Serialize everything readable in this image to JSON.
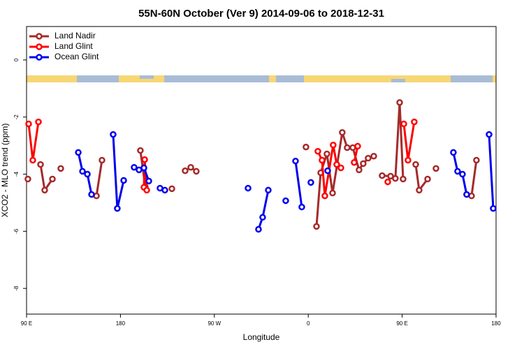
{
  "chart_data": {
    "type": "line",
    "title": "55N-60N October (Ver 9)   2014-09-06 to 2018-12-31",
    "x_label": "Longitude",
    "y_label": "XCO2 - MLO trend (ppm)",
    "xlim": [
      90,
      540
    ],
    "ylim": [
      -8.9,
      1.17
    ],
    "xticks": [
      {
        "value": 90,
        "label": "90 E"
      },
      180,
      {
        "value": 270,
        "label": "90 W"
      },
      {
        "value": 360,
        "label": "0"
      },
      {
        "value": 450,
        "label": "90 E"
      },
      {
        "value": 540,
        "label": "180"
      }
    ],
    "yticks": [
      0,
      -2,
      -4,
      -6,
      -8
    ],
    "legend": "topleft",
    "series": [
      {
        "name": "Land Nadir",
        "color": "#a52a2a",
        "x": [
          91.3,
          null,
          103.4,
          107.4,
          114.8,
          null,
          122.8,
          null,
          157.0,
          162.3,
          null,
          199.1,
          203.8,
          null,
          229.3,
          null,
          242.0,
          247.4,
          252.7,
          null,
          357.8,
          null,
          367.9,
          371.9,
          377.9,
          383.3,
          392.6,
          397.3,
          402.7,
          408.7,
          412.7,
          417.4,
          422.8,
          null,
          430.8,
          438.9,
          443.5,
          447.6,
          450.9,
          null,
          463.0,
          466.3,
          474.4,
          null,
          482.4,
          null,
          516.5,
          521.2
        ],
        "values": [
          -4.17,
          null,
          -3.66,
          -4.56,
          -4.17,
          null,
          -3.8,
          null,
          -4.76,
          -3.51,
          null,
          -3.17,
          -4.44,
          null,
          -4.51,
          null,
          -3.88,
          -3.76,
          -3.9,
          null,
          -3.05,
          null,
          -5.83,
          -3.95,
          -3.29,
          -4.66,
          -2.54,
          -3.07,
          -3.07,
          -3.85,
          -3.63,
          -3.44,
          -3.37,
          null,
          -4.05,
          -4.07,
          -4.15,
          -1.49,
          -4.17,
          null,
          -3.66,
          -4.56,
          -4.17,
          null,
          -3.8,
          null,
          -4.76,
          -3.51
        ]
      },
      {
        "name": "Land Glint",
        "color": "#ff0000",
        "x": [
          92.0,
          96.0,
          101.4,
          null,
          202.5,
          203.2,
          205.2,
          null,
          369.2,
          373.2,
          375.9,
          383.9,
          387.3,
          391.3,
          null,
          404.0,
          407.4,
          null,
          436.2,
          null,
          451.6,
          455.6,
          461.6
        ],
        "values": [
          -2.24,
          -3.51,
          -2.17,
          null,
          -4.46,
          -3.49,
          -4.56,
          null,
          -3.2,
          -3.51,
          -4.76,
          -2.98,
          -3.66,
          -3.78,
          null,
          -3.59,
          -3.02,
          null,
          -4.27,
          null,
          -2.24,
          -3.51,
          -2.17
        ]
      },
      {
        "name": "Ocean Glint",
        "color": "#0000ee",
        "x": [
          139.6,
          143.6,
          148.3,
          152.3,
          null,
          173.0,
          177.0,
          183.1,
          null,
          193.1,
          197.8,
          202.5,
          207.2,
          null,
          217.9,
          222.6,
          null,
          302.3,
          null,
          312.3,
          316.3,
          321.7,
          null,
          338.4,
          null,
          347.8,
          353.8,
          null,
          362.5,
          null,
          378.6,
          null,
          499.1,
          503.1,
          507.8,
          511.8,
          null,
          533.3,
          537.3
        ],
        "values": [
          -3.24,
          -3.9,
          -4.0,
          -4.71,
          null,
          -2.61,
          -5.2,
          -4.22,
          null,
          -3.76,
          -3.85,
          -3.78,
          -4.24,
          null,
          -4.49,
          -4.56,
          null,
          -4.49,
          null,
          -5.93,
          -5.51,
          -4.56,
          null,
          -4.93,
          null,
          -3.54,
          -5.15,
          null,
          -4.29,
          null,
          -3.88,
          null,
          -3.24,
          -3.9,
          -4.0,
          -4.71,
          null,
          -2.61,
          -5.2
        ]
      }
    ]
  }
}
